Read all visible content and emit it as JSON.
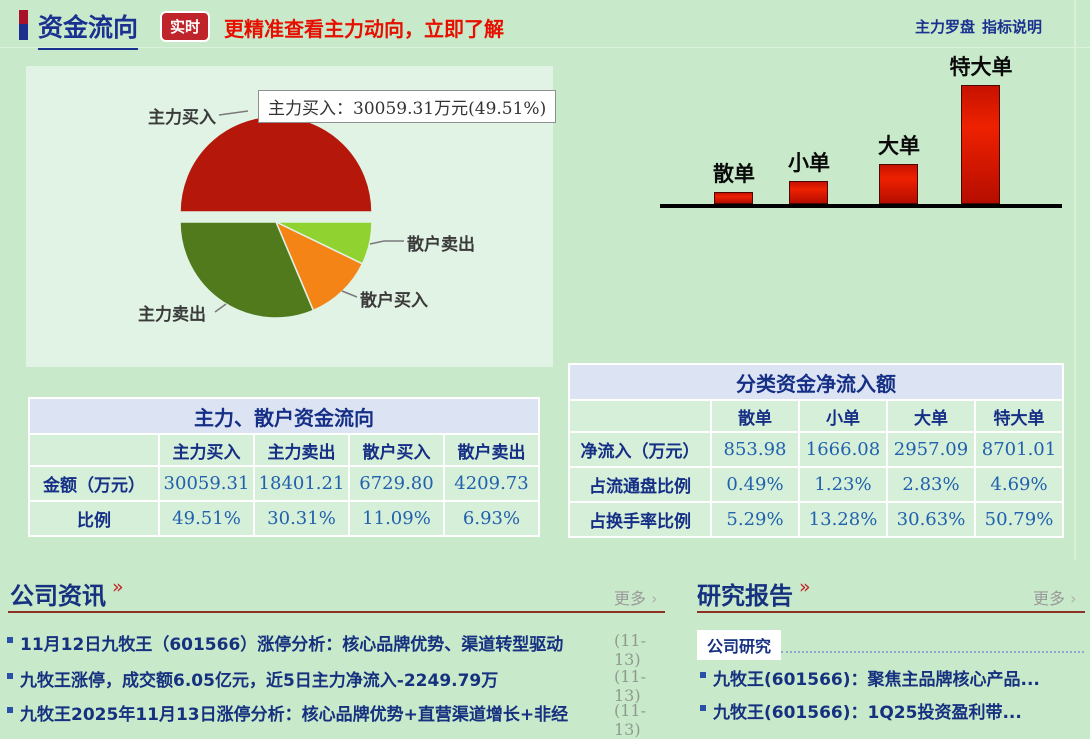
{
  "header": {
    "title": "资金流向",
    "badge": "实时",
    "promo": "更精准查看主力动向，立即了解",
    "links": [
      "主力罗盘",
      "指标说明"
    ],
    "accent_colors": {
      "top": "#a9132a",
      "bottom": "#1b2f8e"
    }
  },
  "chart_data": [
    {
      "type": "pie",
      "labels": [
        "主力买入",
        "散户卖出",
        "散户买入",
        "主力卖出"
      ],
      "values": [
        49.51,
        6.93,
        11.09,
        30.31
      ],
      "colors": [
        "#b5170b",
        "#90d22f",
        "#f58417",
        "#507a1b"
      ],
      "unit": "%",
      "tooltip": "主力买入：30059.31万元(49.51%)",
      "layout": "top-slice-exploded"
    },
    {
      "type": "bar",
      "categories": [
        "散单",
        "小单",
        "大单",
        "特大单"
      ],
      "values": [
        853.98,
        1666.08,
        2957.09,
        8701.01
      ],
      "unit": "万元",
      "bar_color": "#d81100",
      "axis_color": "#000000",
      "grid": false
    }
  ],
  "flow_table": {
    "title": "主力、散户资金流向",
    "columns": [
      "主力买入",
      "主力卖出",
      "散户买入",
      "散户卖出"
    ],
    "rows": [
      {
        "label": "金额（万元）",
        "values": [
          "30059.31",
          "18401.21",
          "6729.80",
          "4209.73"
        ]
      },
      {
        "label": "比例",
        "values": [
          "49.51%",
          "30.31%",
          "11.09%",
          "6.93%"
        ]
      }
    ]
  },
  "net_table": {
    "title": "分类资金净流入额",
    "columns": [
      "散单",
      "小单",
      "大单",
      "特大单"
    ],
    "rows": [
      {
        "label": "净流入（万元）",
        "values": [
          "853.98",
          "1666.08",
          "2957.09",
          "8701.01"
        ]
      },
      {
        "label": "占流通盘比例",
        "values": [
          "0.49%",
          "1.23%",
          "2.83%",
          "4.69%"
        ]
      },
      {
        "label": "占换手率比例",
        "values": [
          "5.29%",
          "13.28%",
          "30.63%",
          "50.79%"
        ]
      }
    ]
  },
  "news": {
    "heading": "公司资讯",
    "arrows": "»",
    "more": "更多",
    "more_arrow": "›",
    "items": [
      {
        "text": "11月12日九牧王（601566）涨停分析：核心品牌优势、渠道转型驱动",
        "date": "(11-13)"
      },
      {
        "text": "九牧王涨停，成交额6.05亿元，近5日主力净流入-2249.79万",
        "date": "(11-13)"
      },
      {
        "text": "九牧王2025年11月13日涨停分析：核心品牌优势+直营渠道增长+非经",
        "date": "(11-13)"
      }
    ]
  },
  "research": {
    "heading": "研究报告",
    "arrows": "»",
    "more": "更多",
    "more_arrow": "›",
    "tab": "公司研究",
    "items": [
      {
        "text": "九牧王(601566)：聚焦主品牌核心产品..."
      },
      {
        "text": "九牧王(601566)：1Q25投资盈利带..."
      }
    ]
  }
}
